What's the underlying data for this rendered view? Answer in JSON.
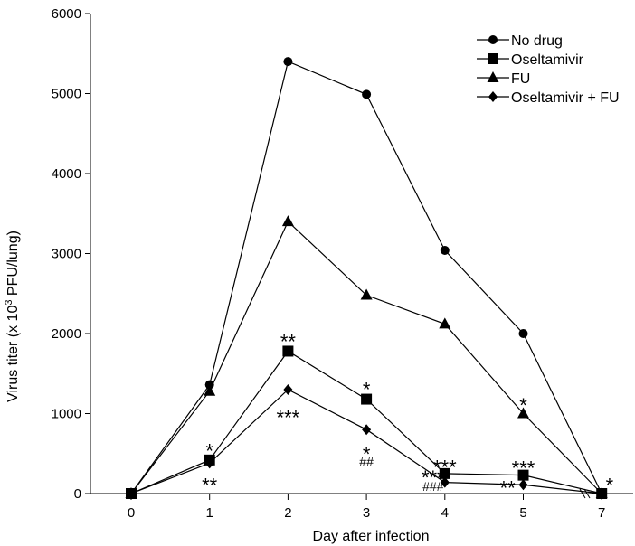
{
  "chart_data": {
    "type": "line",
    "xlabel": "Day after infection",
    "ylabel": "Virus titer (x 10",
    "ylabel_sup": "3",
    "ylabel_tail": " PFU/lung)",
    "categories": [
      "0",
      "1",
      "2",
      "3",
      "4",
      "5",
      "7"
    ],
    "ylim": [
      0,
      6000
    ],
    "yticks": [
      0,
      1000,
      2000,
      3000,
      4000,
      5000,
      6000
    ],
    "legend_position": "top-right",
    "series": [
      {
        "name": "No drug",
        "marker": "circle",
        "values": [
          0,
          1360,
          5400,
          4990,
          3040,
          2000,
          0
        ]
      },
      {
        "name": "Oseltamivir",
        "marker": "square",
        "values": [
          0,
          420,
          1780,
          1180,
          250,
          230,
          0
        ]
      },
      {
        "name": "FU",
        "marker": "triangle",
        "values": [
          0,
          1280,
          3400,
          2480,
          2120,
          1000,
          0
        ]
      },
      {
        "name": "Oseltamivir + FU",
        "marker": "diamond",
        "values": [
          0,
          380,
          1300,
          800,
          140,
          110,
          0
        ]
      }
    ],
    "annotations": [
      {
        "text": "*",
        "x": 1,
        "y": 580
      },
      {
        "text": "**",
        "x": 1,
        "y": 150
      },
      {
        "text": "**",
        "x": 2,
        "y": 1950
      },
      {
        "text": "***",
        "x": 2,
        "y": 1000
      },
      {
        "text": "*",
        "x": 3,
        "y": 1350
      },
      {
        "text": "*",
        "x": 3,
        "y": 540
      },
      {
        "text": "##",
        "x": 3,
        "y": 400
      },
      {
        "text": "***",
        "x": 4,
        "y": 380
      },
      {
        "text": "***",
        "x": 3.85,
        "y": 250
      },
      {
        "text": "###",
        "x": 3.85,
        "y": 90
      },
      {
        "text": "***",
        "x": 5,
        "y": 370
      },
      {
        "text": "**",
        "x": 4.8,
        "y": 120
      },
      {
        "text": "*",
        "x": 5,
        "y": 1150
      },
      {
        "text": "*",
        "x": 6.1,
        "y": 150
      }
    ]
  }
}
